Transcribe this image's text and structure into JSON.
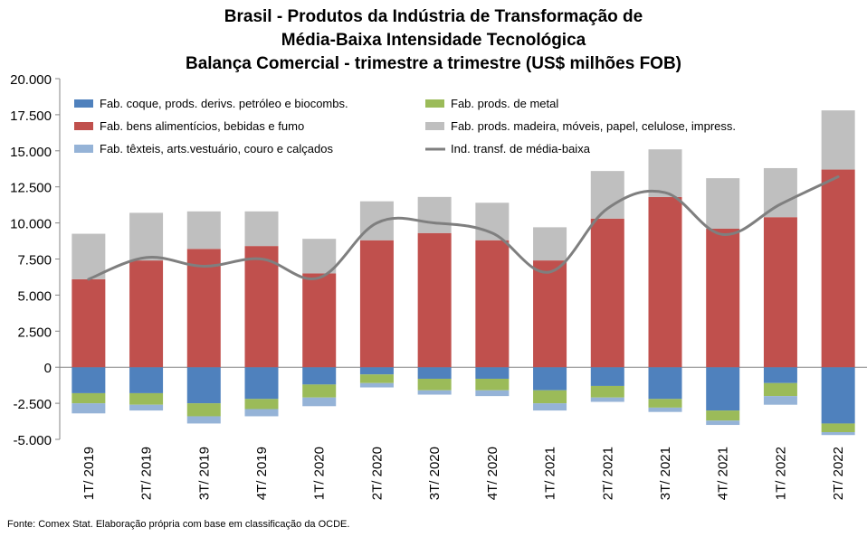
{
  "title_lines": [
    "Brasil - Produtos da Indústria de Transformação de",
    "Média-Baixa Intensidade Tecnológica",
    "Balança Comercial - trimestre a trimestre (US$ milhões FOB)"
  ],
  "source": "Fonte: Comex Stat. Elaboração própria com base em classificação da OCDE.",
  "chart_data": {
    "type": "bar",
    "stacked": true,
    "categories": [
      "1T/ 2019",
      "2T/ 2019",
      "3T/ 2019",
      "4T/ 2019",
      "1T/ 2020",
      "2T/ 2020",
      "3T/ 2020",
      "4T/ 2020",
      "1T/ 2021",
      "2T/ 2021",
      "3T/ 2021",
      "4T/ 2021",
      "1T/ 2022",
      "2T/ 2022"
    ],
    "ylim": [
      -5000,
      20000
    ],
    "yticks": [
      -5000,
      -2500,
      0,
      2500,
      5000,
      7500,
      10000,
      12500,
      15000,
      17500,
      20000
    ],
    "ytick_labels": [
      "-5.000",
      "-2.500",
      "0",
      "2.500",
      "5.000",
      "7.500",
      "10.000",
      "12.500",
      "15.000",
      "17.500",
      "20.000"
    ],
    "grid": false,
    "legend_position": "top",
    "series": [
      {
        "name": "Fab. coque, prods. derivs. petróleo e biocombs.",
        "color": "#4F81BD",
        "values": [
          -1800,
          -1800,
          -2500,
          -2200,
          -1200,
          -500,
          -800,
          -800,
          -1600,
          -1300,
          -2200,
          -3000,
          -1100,
          -3900
        ]
      },
      {
        "name": "Fab. prods. de metal",
        "color": "#9BBB59",
        "values": [
          -700,
          -800,
          -900,
          -700,
          -900,
          -600,
          -800,
          -800,
          -900,
          -800,
          -600,
          -700,
          -900,
          -600
        ]
      },
      {
        "name": "Fab. bens alimentícios, bebidas e fumo",
        "color": "#C0504D",
        "values": [
          6100,
          7400,
          8200,
          8400,
          6500,
          8800,
          9300,
          8800,
          7400,
          10300,
          11800,
          9600,
          10400,
          13700
        ]
      },
      {
        "name": "Fab. prods. madeira, móveis, papel, celulose, impress.",
        "color": "#BFBFBF",
        "values": [
          3150,
          3300,
          2600,
          2400,
          2400,
          2700,
          2500,
          2600,
          2300,
          3300,
          3300,
          3500,
          3400,
          4100
        ]
      },
      {
        "name": "Fab. têxteis, arts.vestuário, couro e calçados",
        "color": "#95B3D7",
        "values": [
          -700,
          -400,
          -500,
          -500,
          -600,
          -300,
          -300,
          -400,
          -500,
          -300,
          -300,
          -300,
          -600,
          -200
        ]
      }
    ],
    "line_series": {
      "name": "Ind. transf. de média-baixa",
      "color": "#7F7F7F",
      "values": [
        6100,
        7600,
        7000,
        7500,
        6200,
        10000,
        10000,
        9300,
        6600,
        11000,
        12100,
        9200,
        11300,
        13200
      ]
    }
  }
}
